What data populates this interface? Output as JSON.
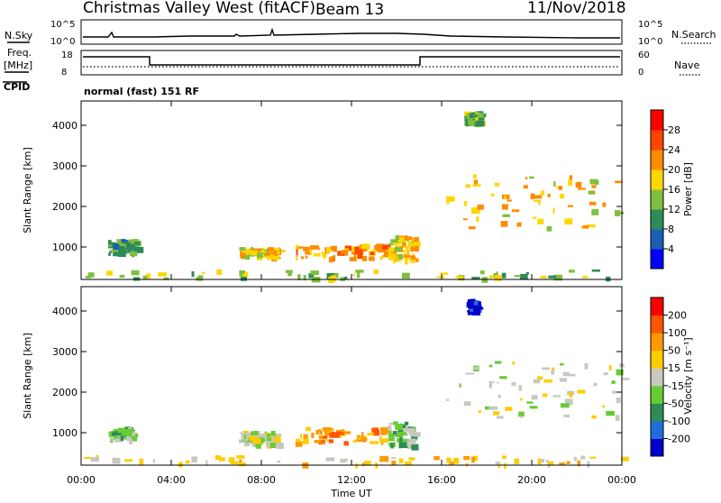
{
  "header": {
    "title": "Christmas Valley West (fitACF)",
    "beam": "Beam 13",
    "date": "11/Nov/2018"
  },
  "strip": {
    "nsky_label": "N.Sky",
    "nsky_ticks": [
      "10^5",
      "10^0"
    ],
    "nsearch_label": "N.Search",
    "nsearch_ticks": [
      "10^5",
      "10^0"
    ],
    "freq_label_line1": "Freq.",
    "freq_label_line2": "[MHz]",
    "freq_ticks": [
      "18",
      "8"
    ],
    "nave_label": "Nave",
    "nave_ticks": [
      "60",
      "0"
    ],
    "cpid_label": "CPID",
    "cpid_text": "normal (fast) 151 RF"
  },
  "x_axis": {
    "label": "Time UT",
    "ticks": [
      "00:00",
      "04:00",
      "08:00",
      "12:00",
      "16:00",
      "20:00",
      "00:00"
    ]
  },
  "colors": {
    "power": [
      "#0000ff",
      "#1a5fb4",
      "#2e8b57",
      "#7fbf3f",
      "#ffd700",
      "#ff8c00",
      "#ff4500",
      "#ff0000"
    ],
    "velocity": [
      "#0000cc",
      "#1e6fd9",
      "#2e8b57",
      "#66cc33",
      "#c8c8c0",
      "#ffcc00",
      "#ff9900",
      "#ff5500",
      "#ff0000"
    ]
  },
  "chart_data": [
    {
      "type": "heatmap",
      "name": "power",
      "ylabel": "Slant Range [km]",
      "xlabel": "",
      "yticks": [
        "1000",
        "2000",
        "3000",
        "4000"
      ],
      "ylim": [
        200,
        4600
      ],
      "xlim": [
        0,
        24
      ],
      "colorbar_label": "Power [dB]",
      "colorbar_ticks": [
        "28",
        "24",
        "20",
        "16",
        "12",
        "8",
        "4"
      ],
      "blobs": [
        {
          "t0": 1.2,
          "t1": 2.4,
          "r0": 850,
          "r1": 1200,
          "level": 2
        },
        {
          "t0": 7.0,
          "t1": 8.8,
          "r0": 750,
          "r1": 1000,
          "level": 4
        },
        {
          "t0": 9.4,
          "t1": 13.5,
          "r0": 750,
          "r1": 1100,
          "level": 5
        },
        {
          "t0": 13.6,
          "t1": 14.8,
          "r0": 700,
          "r1": 1300,
          "level": 4
        },
        {
          "t0": 17.0,
          "t1": 17.6,
          "r0": 4050,
          "r1": 4350,
          "level": 3
        },
        {
          "t0": 16.2,
          "t1": 24.0,
          "r0": 1400,
          "r1": 2800,
          "level": 4
        },
        {
          "t0": 0.0,
          "t1": 24.0,
          "r0": 250,
          "r1": 450,
          "level": 3
        }
      ]
    },
    {
      "type": "heatmap",
      "name": "velocity",
      "ylabel": "Slant Range [km]",
      "xlabel": "Time UT",
      "yticks": [
        "1000",
        "2000",
        "3000",
        "4000"
      ],
      "ylim": [
        200,
        4600
      ],
      "xlim": [
        0,
        24
      ],
      "colorbar_label": "Velocity [m s⁻¹]",
      "colorbar_ticks": [
        "200",
        "100",
        "50",
        "15",
        "-15",
        "-50",
        "-100",
        "-200"
      ],
      "blobs": [
        {
          "t0": 1.2,
          "t1": 2.2,
          "r0": 850,
          "r1": 1150,
          "level": 3
        },
        {
          "t0": 7.0,
          "t1": 8.8,
          "r0": 750,
          "r1": 1050,
          "level": 4
        },
        {
          "t0": 9.4,
          "t1": 13.5,
          "r0": 750,
          "r1": 1150,
          "level": 6
        },
        {
          "t0": 13.6,
          "t1": 14.8,
          "r0": 700,
          "r1": 1300,
          "level": 3
        },
        {
          "t0": 17.1,
          "t1": 17.5,
          "r0": 4000,
          "r1": 4300,
          "level": 0
        },
        {
          "t0": 16.2,
          "t1": 24.0,
          "r0": 1400,
          "r1": 2800,
          "level": 4
        },
        {
          "t0": 0.0,
          "t1": 24.0,
          "r0": 250,
          "r1": 450,
          "level": 5
        }
      ]
    }
  ]
}
